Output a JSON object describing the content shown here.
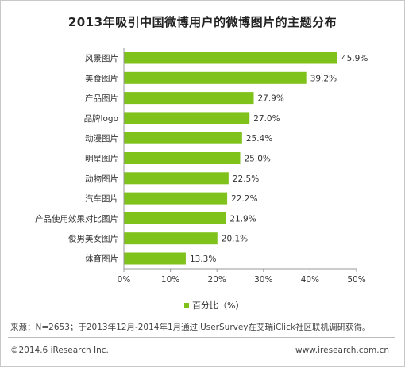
{
  "chart_data": {
    "type": "bar",
    "orientation": "horizontal",
    "title": "2013年吸引中国微博用户的微博图片的主题分布",
    "categories": [
      "风景图片",
      "美食图片",
      "产品图片",
      "品牌logo",
      "动漫图片",
      "明星图片",
      "动物图片",
      "汽车图片",
      "产品使用效果对比图片",
      "俊男美女图片",
      "体育图片"
    ],
    "series": [
      {
        "name": "百分比（%）",
        "values": [
          45.9,
          39.2,
          27.9,
          27.0,
          25.4,
          25.0,
          22.5,
          22.2,
          21.9,
          20.1,
          13.3
        ],
        "value_labels": [
          "45.9%",
          "39.2%",
          "27.9%",
          "27.0%",
          "25.4%",
          "25.0%",
          "22.5%",
          "22.2%",
          "21.9%",
          "20.1%",
          "13.3%"
        ]
      }
    ],
    "xlim": [
      0,
      50
    ],
    "x_ticks": [
      0,
      10,
      20,
      30,
      40,
      50
    ],
    "x_tick_labels": [
      "0%",
      "10%",
      "20%",
      "30%",
      "40%",
      "50%"
    ],
    "xlabel": "",
    "ylabel": "",
    "grid": false,
    "legend_position": "bottom",
    "bar_color": "#80c21c"
  },
  "footer": {
    "source": "来源：N=2653；于2013年12月-2014年1月通过iUserSurvey在艾瑞iClick社区联机调研获得。",
    "copyright": "©2014.6 iResearch Inc.",
    "website": "www.iresearch.com.cn"
  }
}
